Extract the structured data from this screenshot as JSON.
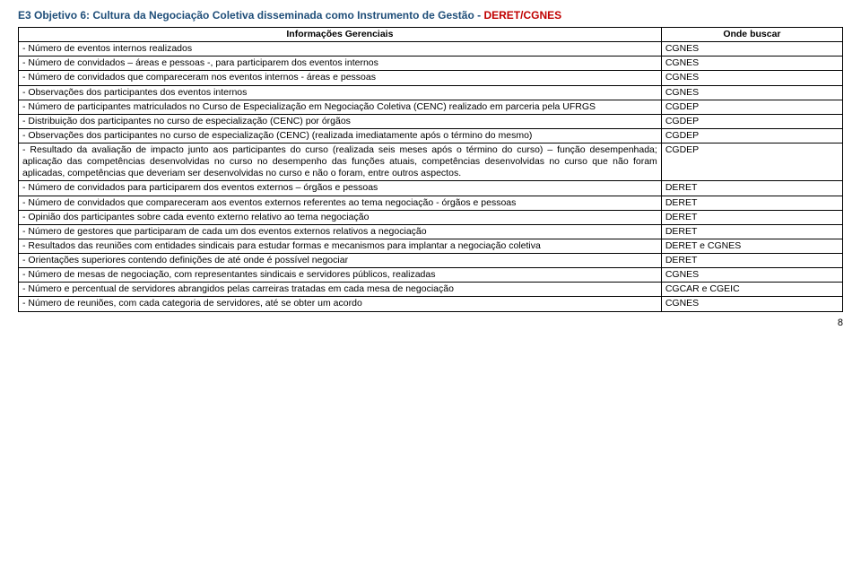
{
  "header": {
    "main": "E3 Objetivo 6: Cultura da Negociação Coletiva disseminada como Instrumento de Gestão",
    "sep": " - ",
    "accent": "DERET/CGNES"
  },
  "table": {
    "columns": [
      "Informações Gerenciais",
      "Onde buscar"
    ],
    "rows": [
      [
        "- Número de eventos internos realizados",
        "CGNES"
      ],
      [
        "- Número de convidados – áreas e pessoas -, para participarem dos eventos internos",
        "CGNES"
      ],
      [
        "- Número de convidados que compareceram nos eventos internos - áreas e pessoas",
        "CGNES"
      ],
      [
        "- Observações dos participantes dos eventos internos",
        "CGNES"
      ],
      [
        "- Número de participantes matriculados no Curso de Especialização em Negociação Coletiva (CENC) realizado em parceria pela UFRGS",
        "CGDEP"
      ],
      [
        "- Distribuição dos participantes no curso de especialização (CENC)  por órgãos",
        "CGDEP"
      ],
      [
        "- Observações dos participantes no curso de especialização (CENC) (realizada imediatamente após o término do mesmo)",
        "CGDEP"
      ],
      [
        "- Resultado da avaliação de impacto junto aos participantes do curso (realizada seis meses após o término do curso) – função desempenhada; aplicação das competências desenvolvidas no curso no desempenho das funções atuais, competências desenvolvidas no curso que não foram aplicadas, competências que deveriam ser desenvolvidas no curso e não o foram, entre outros aspectos.",
        "CGDEP"
      ],
      [
        "- Número de convidados para participarem dos eventos externos – órgãos e pessoas",
        "DERET"
      ],
      [
        "- Número de convidados que compareceram aos eventos externos referentes ao tema negociação - órgãos e pessoas",
        "DERET"
      ],
      [
        "- Opinião dos participantes sobre cada evento externo relativo ao tema negociação",
        "DERET"
      ],
      [
        "- Número de gestores que participaram de cada um  dos eventos externos relativos a negociação",
        "DERET"
      ],
      [
        "- Resultados das reuniões com entidades sindicais para estudar formas e mecanismos para implantar a negociação coletiva",
        "DERET e CGNES"
      ],
      [
        "- Orientações superiores contendo definições de até onde é possível negociar",
        "DERET"
      ],
      [
        "- Número de mesas de negociação, com representantes sindicais e servidores públicos, realizadas",
        "CGNES"
      ],
      [
        "- Número e percentual de servidores abrangidos pelas carreiras tratadas em cada mesa de negociação",
        "CGCAR e CGEIC"
      ],
      [
        "- Número de reuniões, com cada categoria de servidores, até se obter  um acordo",
        "CGNES"
      ]
    ],
    "justify_rows": [
      7
    ]
  },
  "page_number": "8"
}
